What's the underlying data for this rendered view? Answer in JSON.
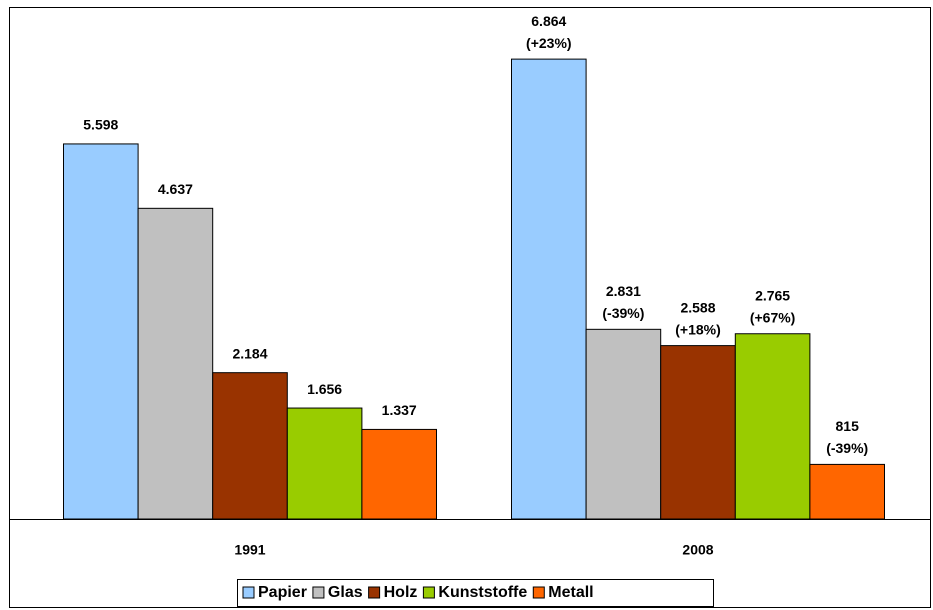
{
  "chart_data": {
    "type": "bar",
    "categories": [
      "1991",
      "2008"
    ],
    "series": [
      {
        "name": "Papier",
        "color": "#99ccff",
        "values": [
          5598,
          6864
        ],
        "value_labels": [
          "5.598",
          "6.864"
        ],
        "change_labels": [
          null,
          "(+23%)"
        ]
      },
      {
        "name": "Glas",
        "color": "#c0c0c0",
        "values": [
          4637,
          2831
        ],
        "value_labels": [
          "4.637",
          "2.831"
        ],
        "change_labels": [
          null,
          "(-39%)"
        ]
      },
      {
        "name": "Holz",
        "color": "#993300",
        "values": [
          2184,
          2588
        ],
        "value_labels": [
          "2.184",
          "2.588"
        ],
        "change_labels": [
          null,
          "(+18%)"
        ]
      },
      {
        "name": "Kunststoffe",
        "color": "#99cc00",
        "values": [
          1656,
          2765
        ],
        "value_labels": [
          "1.656",
          "2.765"
        ],
        "change_labels": [
          null,
          "(+67%)"
        ]
      },
      {
        "name": "Metall",
        "color": "#ff6600",
        "values": [
          1337,
          815
        ],
        "value_labels": [
          "1.337",
          "815"
        ],
        "change_labels": [
          null,
          "(-39%)"
        ]
      }
    ]
  }
}
